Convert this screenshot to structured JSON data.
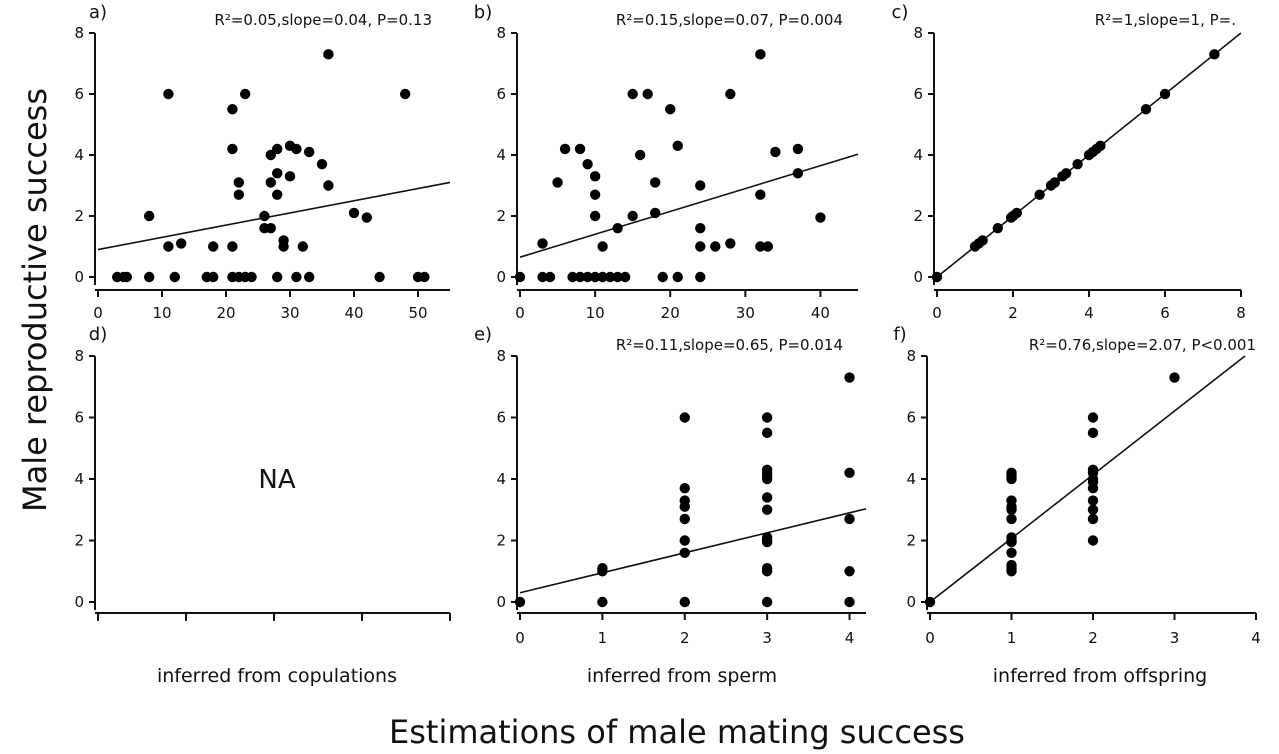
{
  "figure": {
    "ylabel": "Male reproductive success",
    "xlabel": "Estimations of male mating success",
    "column_labels": [
      "inferred from copulations",
      "inferred from sperm",
      "inferred from offspring"
    ]
  },
  "chart_data": [
    {
      "panel": "a)",
      "type": "scatter",
      "stats": "R²=0.05,slope=0.04, P=0.13",
      "xlim": [
        0,
        55
      ],
      "ylim": [
        0,
        8
      ],
      "xticks": [
        0,
        10,
        20,
        30,
        40,
        50
      ],
      "yticks": [
        0,
        2,
        4,
        6,
        8
      ],
      "trendline": {
        "intercept": 0.9,
        "slope": 0.04
      },
      "points": [
        [
          3,
          0
        ],
        [
          4,
          0
        ],
        [
          4.5,
          0
        ],
        [
          8,
          0
        ],
        [
          8,
          2
        ],
        [
          11,
          1
        ],
        [
          11,
          6
        ],
        [
          12,
          0
        ],
        [
          13,
          1.1
        ],
        [
          17,
          0
        ],
        [
          18,
          0
        ],
        [
          18,
          1
        ],
        [
          21,
          0
        ],
        [
          21,
          1
        ],
        [
          21,
          4.2
        ],
        [
          21,
          5.5
        ],
        [
          22,
          0
        ],
        [
          22,
          2.7
        ],
        [
          22,
          3.1
        ],
        [
          23,
          0
        ],
        [
          23,
          6
        ],
        [
          24,
          0
        ],
        [
          26,
          1.6
        ],
        [
          26,
          2
        ],
        [
          27,
          1.6
        ],
        [
          27,
          3.1
        ],
        [
          27,
          4
        ],
        [
          28,
          0
        ],
        [
          28,
          2.7
        ],
        [
          28,
          3.4
        ],
        [
          28,
          4.2
        ],
        [
          29,
          1
        ],
        [
          29,
          1.2
        ],
        [
          30,
          3.3
        ],
        [
          30,
          4.3
        ],
        [
          31,
          0
        ],
        [
          31,
          4.2
        ],
        [
          32,
          1
        ],
        [
          33,
          0
        ],
        [
          33,
          4.1
        ],
        [
          35,
          3.7
        ],
        [
          36,
          3
        ],
        [
          36,
          7.3
        ],
        [
          40,
          2.1
        ],
        [
          42,
          1.95
        ],
        [
          44,
          0
        ],
        [
          48,
          6
        ],
        [
          50,
          0
        ],
        [
          51,
          0
        ]
      ]
    },
    {
      "panel": "b)",
      "type": "scatter",
      "stats": "R²=0.15,slope=0.07, P=0.004",
      "xlim": [
        0,
        45
      ],
      "ylim": [
        0,
        8
      ],
      "xticks": [
        0,
        10,
        20,
        30,
        40
      ],
      "yticks": [
        0,
        2,
        4,
        6,
        8
      ],
      "trendline": {
        "intercept": 0.65,
        "slope": 0.075
      },
      "points": [
        [
          0,
          0
        ],
        [
          3,
          0
        ],
        [
          3,
          1.1
        ],
        [
          4,
          0
        ],
        [
          5,
          3.1
        ],
        [
          6,
          4.2
        ],
        [
          7,
          0
        ],
        [
          8,
          0
        ],
        [
          8,
          4.2
        ],
        [
          9,
          0
        ],
        [
          9,
          3.7
        ],
        [
          10,
          0
        ],
        [
          10,
          2
        ],
        [
          10,
          2.7
        ],
        [
          10,
          3.3
        ],
        [
          11,
          0
        ],
        [
          11,
          1
        ],
        [
          12,
          0
        ],
        [
          13,
          0
        ],
        [
          13,
          1.6
        ],
        [
          14,
          0
        ],
        [
          15,
          2
        ],
        [
          15,
          6
        ],
        [
          16,
          4
        ],
        [
          17,
          6
        ],
        [
          18,
          2.1
        ],
        [
          18,
          3.1
        ],
        [
          19,
          0
        ],
        [
          20,
          5.5
        ],
        [
          21,
          0
        ],
        [
          21,
          4.3
        ],
        [
          24,
          0
        ],
        [
          24,
          1
        ],
        [
          24,
          1.6
        ],
        [
          24,
          3
        ],
        [
          26,
          1
        ],
        [
          28,
          1.1
        ],
        [
          28,
          6
        ],
        [
          32,
          1
        ],
        [
          32,
          2.7
        ],
        [
          32,
          7.3
        ],
        [
          33,
          1
        ],
        [
          34,
          4.1
        ],
        [
          37,
          3.4
        ],
        [
          37,
          4.2
        ],
        [
          40,
          1.95
        ]
      ]
    },
    {
      "panel": "c)",
      "type": "scatter",
      "stats": "R²=1,slope=1, P=.",
      "xlim": [
        0,
        8
      ],
      "ylim": [
        0,
        8
      ],
      "xticks": [
        0,
        2,
        4,
        6,
        8
      ],
      "yticks": [
        0,
        2,
        4,
        6,
        8
      ],
      "trendline": {
        "intercept": 0,
        "slope": 1
      },
      "points": [
        [
          0,
          0
        ],
        [
          1,
          1
        ],
        [
          1.1,
          1.1
        ],
        [
          1.2,
          1.2
        ],
        [
          1.6,
          1.6
        ],
        [
          1.95,
          1.95
        ],
        [
          2,
          2
        ],
        [
          2.1,
          2.1
        ],
        [
          2.7,
          2.7
        ],
        [
          3,
          3
        ],
        [
          3.1,
          3.1
        ],
        [
          3.3,
          3.3
        ],
        [
          3.4,
          3.4
        ],
        [
          3.7,
          3.7
        ],
        [
          4,
          4
        ],
        [
          4.1,
          4.1
        ],
        [
          4.2,
          4.2
        ],
        [
          4.3,
          4.3
        ],
        [
          5.5,
          5.5
        ],
        [
          6,
          6
        ],
        [
          7.3,
          7.3
        ]
      ]
    },
    {
      "panel": "d)",
      "type": "scatter",
      "placeholder": "NA",
      "ylim": [
        0,
        8
      ],
      "yticks": [
        0,
        2,
        4,
        6,
        8
      ]
    },
    {
      "panel": "e)",
      "type": "scatter",
      "stats": "R²=0.11,slope=0.65, P=0.014",
      "xlim": [
        0,
        4.2
      ],
      "ylim": [
        0,
        8
      ],
      "xticks": [
        0,
        1,
        2,
        3,
        4
      ],
      "yticks": [
        0,
        2,
        4,
        6,
        8
      ],
      "trendline": {
        "intercept": 0.3,
        "slope": 0.65
      },
      "points": [
        [
          0,
          0
        ],
        [
          1,
          0
        ],
        [
          1,
          1
        ],
        [
          1,
          1.1
        ],
        [
          2,
          0
        ],
        [
          2,
          1.6
        ],
        [
          2,
          2
        ],
        [
          2,
          2.7
        ],
        [
          2,
          3.1
        ],
        [
          2,
          3.3
        ],
        [
          2,
          3.7
        ],
        [
          2,
          6
        ],
        [
          3,
          0
        ],
        [
          3,
          1
        ],
        [
          3,
          1.1
        ],
        [
          3,
          1.95
        ],
        [
          3,
          2
        ],
        [
          3,
          2.1
        ],
        [
          3,
          3
        ],
        [
          3,
          3.4
        ],
        [
          3,
          4
        ],
        [
          3,
          4.1
        ],
        [
          3,
          4.2
        ],
        [
          3,
          4.3
        ],
        [
          3,
          5.5
        ],
        [
          3,
          6
        ],
        [
          4,
          0
        ],
        [
          4,
          1
        ],
        [
          4,
          2.7
        ],
        [
          4,
          4.2
        ],
        [
          4,
          7.3
        ]
      ]
    },
    {
      "panel": "f)",
      "type": "scatter",
      "stats": "R²=0.76,slope=2.07, P<0.001",
      "xlim": [
        0,
        4
      ],
      "ylim": [
        0,
        8
      ],
      "xticks": [
        0,
        1,
        2,
        3,
        4
      ],
      "yticks": [
        0,
        2,
        4,
        6,
        8
      ],
      "trendline": {
        "intercept": 0,
        "slope": 2.07
      },
      "points": [
        [
          0,
          0
        ],
        [
          1,
          1
        ],
        [
          1,
          1.1
        ],
        [
          1,
          1.2
        ],
        [
          1,
          1.6
        ],
        [
          1,
          1.95
        ],
        [
          1,
          2
        ],
        [
          1,
          2.1
        ],
        [
          1,
          2.7
        ],
        [
          1,
          3
        ],
        [
          1,
          3.1
        ],
        [
          1,
          3.3
        ],
        [
          1,
          4
        ],
        [
          1,
          4.1
        ],
        [
          1,
          4.2
        ],
        [
          2,
          2
        ],
        [
          2,
          2.7
        ],
        [
          2,
          3
        ],
        [
          2,
          3.3
        ],
        [
          2,
          3.7
        ],
        [
          2,
          3.9
        ],
        [
          2,
          4
        ],
        [
          2,
          4.2
        ],
        [
          2,
          4.3
        ],
        [
          2,
          5.5
        ],
        [
          2,
          6
        ],
        [
          3,
          7.3
        ]
      ]
    }
  ]
}
